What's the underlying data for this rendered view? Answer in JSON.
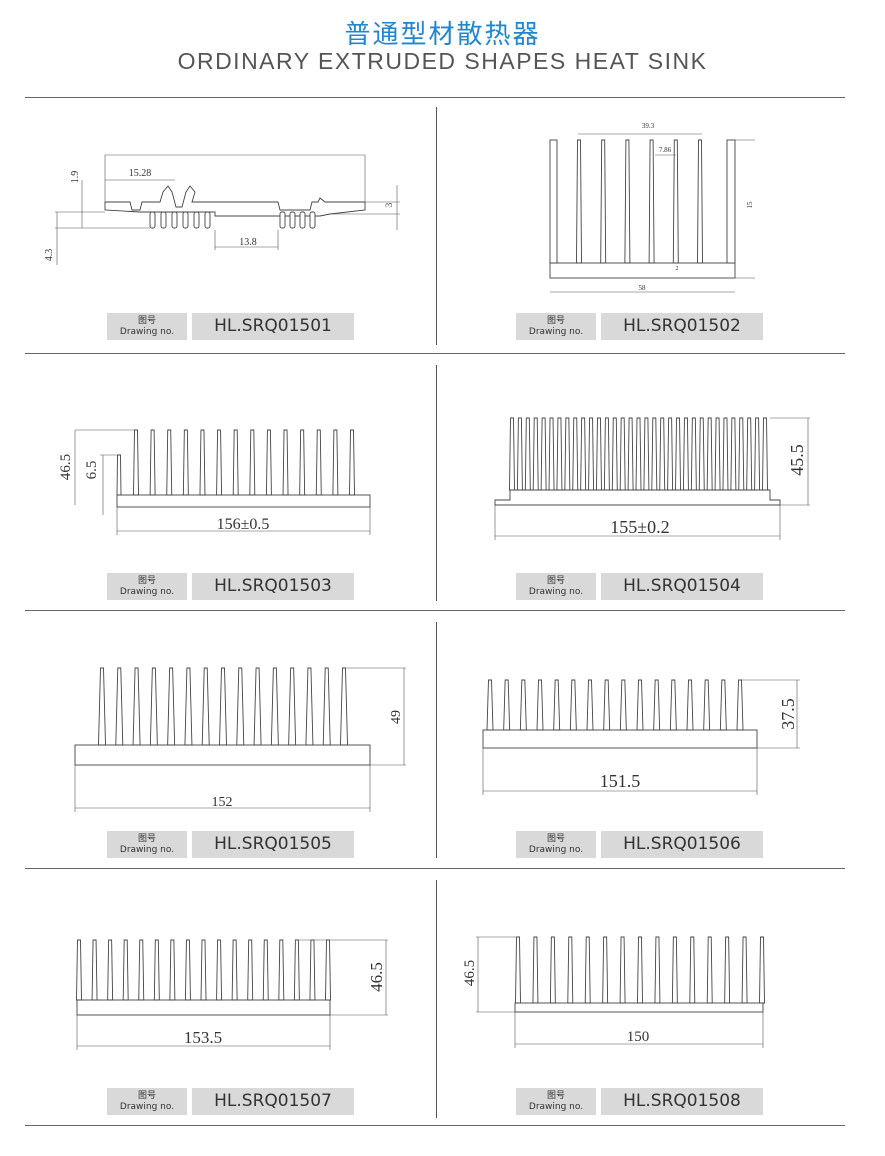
{
  "header": {
    "title_cn": "普通型材散热器",
    "title_en": "ORDINARY EXTRUDED SHAPES HEAT SINK"
  },
  "label_cn": "图号",
  "label_en": "Drawing no.",
  "drawings": [
    {
      "code": "HL.SRQ01501",
      "dims": [
        "15.28",
        "1.9",
        "4.3",
        "3",
        "13.8"
      ]
    },
    {
      "code": "HL.SRQ01502",
      "dims": [
        "39.3",
        "7.86",
        "15",
        "2",
        "58"
      ]
    },
    {
      "code": "HL.SRQ01503",
      "dims": [
        "46.5",
        "6.5",
        "156±0.5"
      ]
    },
    {
      "code": "HL.SRQ01504",
      "dims": [
        "45.5",
        "155±0.2"
      ]
    },
    {
      "code": "HL.SRQ01505",
      "dims": [
        "49",
        "152"
      ]
    },
    {
      "code": "HL.SRQ01506",
      "dims": [
        "37.5",
        "151.5"
      ]
    },
    {
      "code": "HL.SRQ01507",
      "dims": [
        "46.5",
        "153.5"
      ]
    },
    {
      "code": "HL.SRQ01508",
      "dims": [
        "46.5",
        "150"
      ]
    }
  ]
}
